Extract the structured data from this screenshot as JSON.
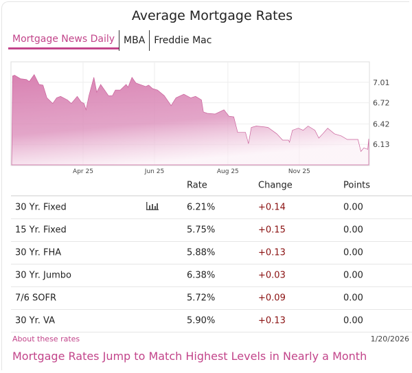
{
  "title": "Average Mortgage Rates",
  "tabs": [
    {
      "label": "Mortgage News Daily",
      "active": true
    },
    {
      "label": "MBA",
      "active": false
    },
    {
      "label": "Freddie Mac",
      "active": false
    }
  ],
  "colors": {
    "accent": "#c2448a",
    "change": "#8a1010",
    "fill": "#d67aad"
  },
  "chart_data": {
    "type": "area",
    "ylim": [
      5.84,
      7.29
    ],
    "xlim": [
      "2025-01-20",
      "2026-01-20"
    ],
    "grid": true,
    "y_ticks": [
      "7.01",
      "6.72",
      "6.42",
      "6.13"
    ],
    "x_ticks": [
      {
        "label": "Apr 25",
        "date": "2025-04-03"
      },
      {
        "label": "Jun 25",
        "date": "2025-06-15"
      },
      {
        "label": "Aug 25",
        "date": "2025-08-29"
      },
      {
        "label": "Nov 25",
        "date": "2025-11-10"
      }
    ],
    "points": [
      [
        "2025-01-21",
        7.1
      ],
      [
        "2025-01-23",
        7.11
      ],
      [
        "2025-01-29",
        7.06
      ],
      [
        "2025-02-04",
        7.05
      ],
      [
        "2025-02-07",
        7.02
      ],
      [
        "2025-02-12",
        7.12
      ],
      [
        "2025-02-17",
        6.98
      ],
      [
        "2025-02-21",
        6.97
      ],
      [
        "2025-02-25",
        6.79
      ],
      [
        "2025-03-03",
        6.71
      ],
      [
        "2025-03-07",
        6.79
      ],
      [
        "2025-03-11",
        6.81
      ],
      [
        "2025-03-18",
        6.76
      ],
      [
        "2025-03-22",
        6.71
      ],
      [
        "2025-03-28",
        6.81
      ],
      [
        "2025-04-01",
        6.73
      ],
      [
        "2025-04-04",
        6.71
      ],
      [
        "2025-04-06",
        6.62
      ],
      [
        "2025-04-09",
        6.82
      ],
      [
        "2025-04-14",
        7.08
      ],
      [
        "2025-04-17",
        6.87
      ],
      [
        "2025-04-21",
        6.98
      ],
      [
        "2025-04-25",
        6.9
      ],
      [
        "2025-04-29",
        6.82
      ],
      [
        "2025-05-03",
        6.82
      ],
      [
        "2025-05-06",
        6.9
      ],
      [
        "2025-05-11",
        6.9
      ],
      [
        "2025-05-17",
        6.98
      ],
      [
        "2025-05-19",
        6.94
      ],
      [
        "2025-05-23",
        7.08
      ],
      [
        "2025-05-27",
        7.0
      ],
      [
        "2025-06-02",
        6.97
      ],
      [
        "2025-06-06",
        6.95
      ],
      [
        "2025-06-09",
        6.97
      ],
      [
        "2025-06-13",
        6.92
      ],
      [
        "2025-06-18",
        6.9
      ],
      [
        "2025-06-25",
        6.82
      ],
      [
        "2025-07-02",
        6.68
      ],
      [
        "2025-07-07",
        6.79
      ],
      [
        "2025-07-15",
        6.84
      ],
      [
        "2025-07-22",
        6.79
      ],
      [
        "2025-07-27",
        6.81
      ],
      [
        "2025-08-02",
        6.76
      ],
      [
        "2025-08-04",
        6.59
      ],
      [
        "2025-08-08",
        6.57
      ],
      [
        "2025-08-16",
        6.56
      ],
      [
        "2025-08-25",
        6.62
      ],
      [
        "2025-08-30",
        6.53
      ],
      [
        "2025-09-04",
        6.52
      ],
      [
        "2025-09-08",
        6.3
      ],
      [
        "2025-09-16",
        6.3
      ],
      [
        "2025-09-19",
        6.14
      ],
      [
        "2025-09-22",
        6.37
      ],
      [
        "2025-09-27",
        6.39
      ],
      [
        "2025-10-04",
        6.38
      ],
      [
        "2025-10-09",
        6.37
      ],
      [
        "2025-10-18",
        6.28
      ],
      [
        "2025-10-24",
        6.19
      ],
      [
        "2025-10-30",
        6.19
      ],
      [
        "2025-10-31",
        6.16
      ],
      [
        "2025-11-03",
        6.33
      ],
      [
        "2025-11-09",
        6.36
      ],
      [
        "2025-11-14",
        6.33
      ],
      [
        "2025-11-19",
        6.39
      ],
      [
        "2025-11-26",
        6.33
      ],
      [
        "2025-11-30",
        6.22
      ],
      [
        "2025-12-04",
        6.28
      ],
      [
        "2025-12-09",
        6.36
      ],
      [
        "2025-12-16",
        6.28
      ],
      [
        "2025-12-23",
        6.25
      ],
      [
        "2025-12-29",
        6.2
      ],
      [
        "2026-01-09",
        6.2
      ],
      [
        "2026-01-12",
        6.03
      ],
      [
        "2026-01-15",
        6.08
      ],
      [
        "2026-01-19",
        6.06
      ],
      [
        "2026-01-20",
        6.21
      ]
    ]
  },
  "table": {
    "headers": {
      "rate": "Rate",
      "change": "Change",
      "points": "Points"
    },
    "rows": [
      {
        "label": "30 Yr. Fixed",
        "rate": "6.21%",
        "change": "+0.14",
        "points": "0.00",
        "chart_icon": true
      },
      {
        "label": "15 Yr. Fixed",
        "rate": "5.75%",
        "change": "+0.15",
        "points": "0.00"
      },
      {
        "label": "30 Yr. FHA",
        "rate": "5.88%",
        "change": "+0.13",
        "points": "0.00"
      },
      {
        "label": "30 Yr. Jumbo",
        "rate": "6.38%",
        "change": "+0.03",
        "points": "0.00"
      },
      {
        "label": "7/6 SOFR",
        "rate": "5.72%",
        "change": "+0.09",
        "points": "0.00"
      },
      {
        "label": "30 Yr. VA",
        "rate": "5.90%",
        "change": "+0.13",
        "points": "0.00"
      }
    ]
  },
  "footer": {
    "about_link": "About these rates",
    "date": "1/20/2026"
  },
  "headline": "Mortgage Rates Jump to Match Highest Levels in Nearly a Month"
}
